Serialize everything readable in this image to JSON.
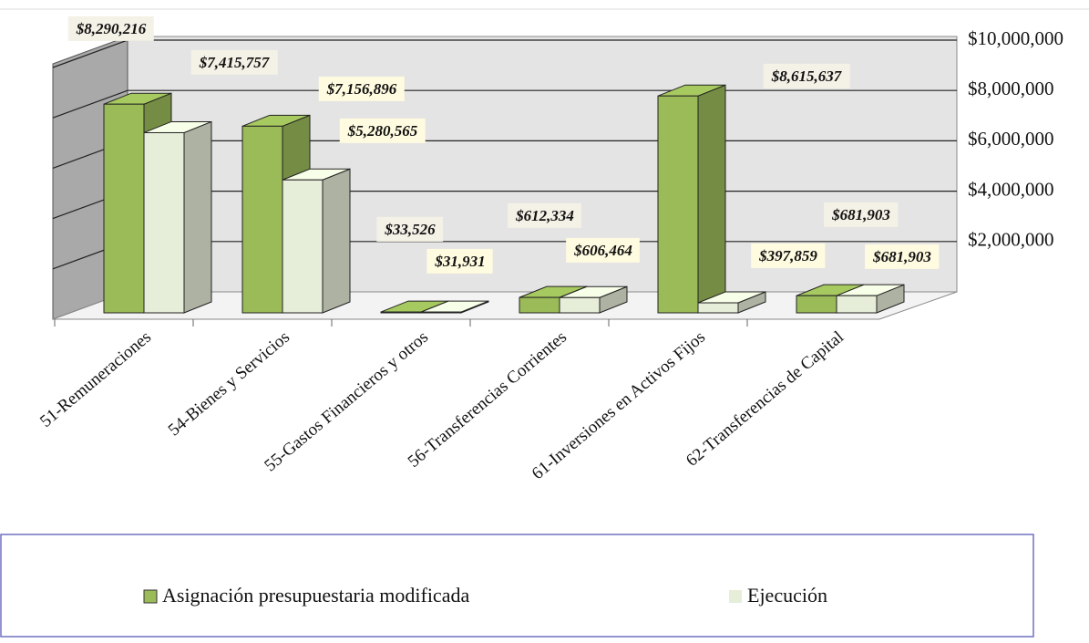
{
  "chart_data": {
    "type": "bar3d",
    "categories": [
      "51-Remuneraciones",
      "54-Bienes y Servicios",
      "55-Gastos Financieros y otros",
      "56-Transferencias Corrientes",
      "61-Inversiones en Activos Fijos",
      "62-Transferencias de Capital"
    ],
    "series": [
      {
        "name": "Asignación presupuestaria modificada",
        "color": "#9bbb59",
        "values": [
          8290216,
          7415757,
          33526,
          612334,
          8615637,
          681903
        ],
        "value_labels": [
          "$8,290,216",
          "$7,415,757",
          "$33,526",
          "$612,334",
          "$8,615,637",
          "$681,903"
        ]
      },
      {
        "name": "Ejecución",
        "color": "#e6edd8",
        "values": [
          7156896,
          5280565,
          31931,
          606464,
          397859,
          681903
        ],
        "value_labels": [
          "$7,156,896",
          "$5,280,565",
          "$31,931",
          "$606,464",
          "$397,859",
          "$681,903"
        ]
      }
    ],
    "ylim": [
      0,
      10000000
    ],
    "yticks": [
      {
        "value": 2000000,
        "label": "$2,000,000"
      },
      {
        "value": 4000000,
        "label": "$4,000,000"
      },
      {
        "value": 6000000,
        "label": "$6,000,000"
      },
      {
        "value": 8000000,
        "label": "$8,000,000"
      },
      {
        "value": 10000000,
        "label": "$10,000,000"
      }
    ],
    "grid": true
  }
}
